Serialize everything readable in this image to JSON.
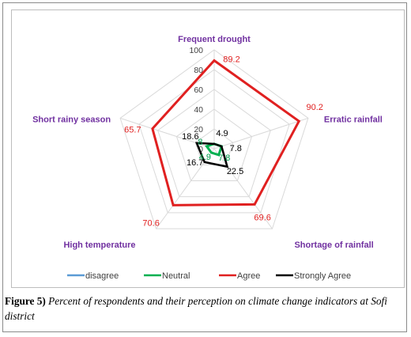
{
  "chart_data": {
    "type": "radar",
    "axes": [
      "Frequent drought",
      "Erratic rainfall",
      "Shortage of rainfall",
      "High temperature",
      "Short rainy season"
    ],
    "rlim": [
      0,
      100
    ],
    "rticks": [
      "0",
      "20",
      "40",
      "60",
      "80",
      "100"
    ],
    "grid": true,
    "legend_position": "bottom",
    "series": [
      {
        "name": "disagree",
        "color": "#5b9bd5",
        "values": [
          0,
          0,
          0,
          0,
          0
        ]
      },
      {
        "name": "Neutral",
        "color": "#00b050",
        "values": [
          4.9,
          7.8,
          7.8,
          4.9,
          8
        ]
      },
      {
        "name": "Agree",
        "color": "#e02020",
        "values": [
          89.2,
          90.2,
          69.6,
          70.6,
          65.7
        ]
      },
      {
        "name": "Strongly Agree",
        "color": "#000000",
        "values": [
          4.9,
          7.8,
          22.5,
          16.7,
          18.6
        ]
      }
    ]
  },
  "caption": {
    "lead": "Figure 5)",
    "text": "Percent of respondents and their perception on climate change indicators at Sofi district"
  }
}
